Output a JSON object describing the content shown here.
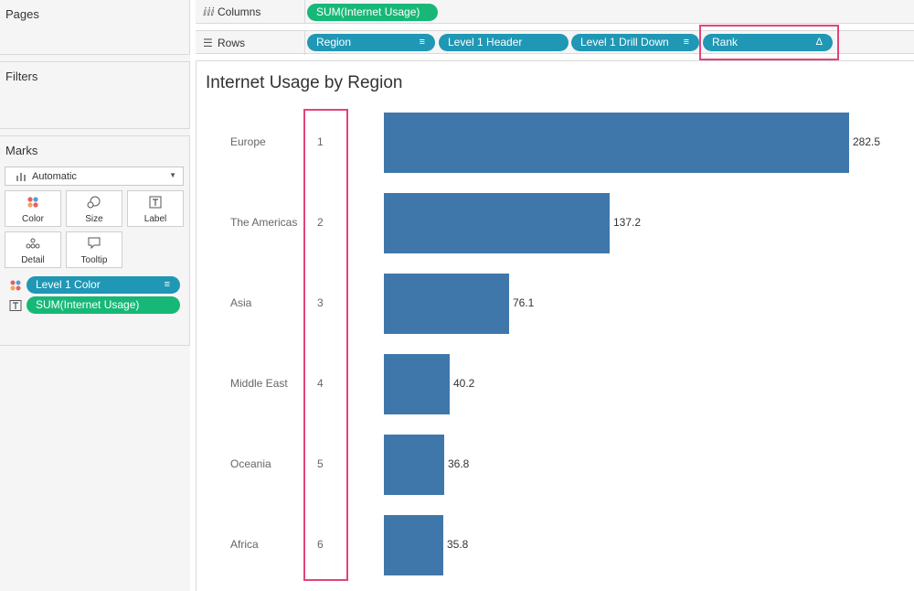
{
  "sidebar": {
    "pages_title": "Pages",
    "filters_title": "Filters",
    "marks": {
      "title": "Marks",
      "mark_type": "Automatic",
      "buttons": [
        {
          "label": "Color",
          "icon": "color-dots-icon"
        },
        {
          "label": "Size",
          "icon": "size-circles-icon"
        },
        {
          "label": "Label",
          "icon": "label-text-icon"
        },
        {
          "label": "Detail",
          "icon": "detail-dots-icon"
        },
        {
          "label": "Tooltip",
          "icon": "tooltip-bubble-icon"
        }
      ],
      "pills": [
        {
          "label": "Level 1 Color",
          "icon": "color-dots-icon",
          "color": "#1f97b5"
        },
        {
          "label": "SUM(Internet Usage)",
          "icon": "label-text-icon",
          "color": "#17b877"
        }
      ]
    }
  },
  "shelves": {
    "columns": {
      "label": "Columns",
      "icon": "columns-icon",
      "pills": [
        "SUM(Internet Usage)"
      ]
    },
    "rows": {
      "label": "Rows",
      "icon": "rows-icon",
      "pills": [
        "Region",
        "Level 1 Header",
        "Level 1 Drill Down",
        "Rank"
      ]
    }
  },
  "colors": {
    "blue_pill": "#1f97b5",
    "green_pill": "#17b877",
    "bar": "#3f77aa",
    "highlight": "#e2447a"
  },
  "chart_data": {
    "type": "bar",
    "title": "Internet Usage by Region",
    "orientation": "horizontal",
    "categories": [
      "Europe",
      "The Americas",
      "Asia",
      "Middle East",
      "Oceania",
      "Africa"
    ],
    "ranks": [
      "1",
      "2",
      "3",
      "4",
      "5",
      "6"
    ],
    "values": [
      282.5,
      137.2,
      76.1,
      40.2,
      36.8,
      35.8
    ],
    "value_labels": [
      "282.5",
      "137.2",
      "76.1",
      "40.2",
      "36.8",
      "35.8"
    ],
    "xlim": [
      0,
      282.5
    ]
  }
}
